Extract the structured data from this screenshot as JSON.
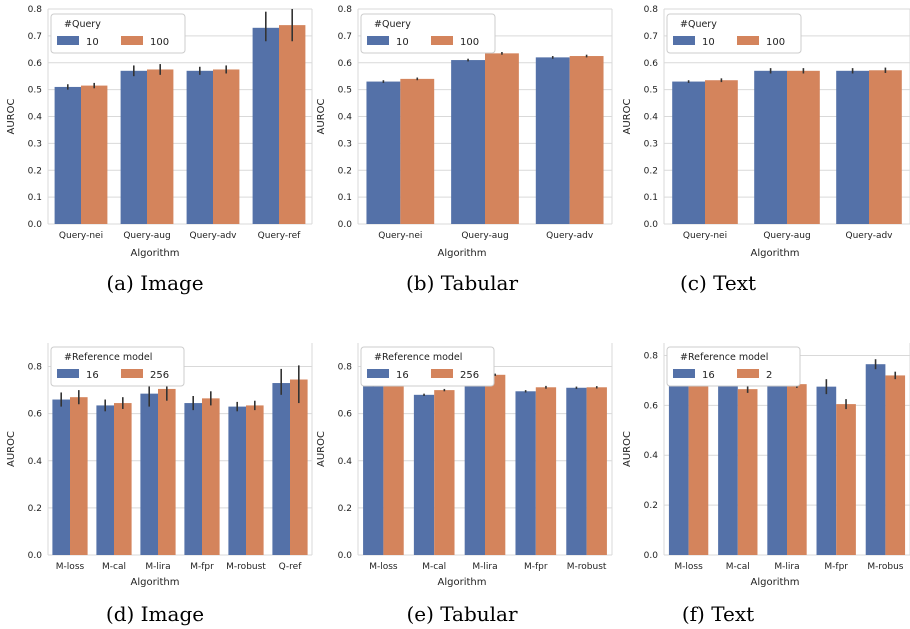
{
  "colors": {
    "series_a": "#5471a8",
    "series_b": "#d4845c",
    "grid": "#d9d9d9",
    "errbar": "#333333"
  },
  "chart_data": [
    {
      "type": "bar",
      "caption": "(a) Image",
      "xlabel": "Algorithm",
      "ylabel": "AUROC",
      "ylim": [
        0,
        0.8
      ],
      "yticks": [
        0.0,
        0.1,
        0.2,
        0.3,
        0.4,
        0.5,
        0.6,
        0.7,
        0.8
      ],
      "grid": "horizontal",
      "legend_title": "#Query",
      "legend_position": "top-left",
      "categories": [
        "Query-nei",
        "Query-aug",
        "Query-adv",
        "Query-ref"
      ],
      "series": [
        {
          "name": "10",
          "values": [
            0.51,
            0.57,
            0.57,
            0.73
          ],
          "err_low": [
            0.5,
            0.55,
            0.555,
            0.68
          ],
          "err_high": [
            0.52,
            0.59,
            0.585,
            0.79
          ]
        },
        {
          "name": "100",
          "values": [
            0.515,
            0.575,
            0.575,
            0.74
          ],
          "err_low": [
            0.505,
            0.555,
            0.56,
            0.68
          ],
          "err_high": [
            0.525,
            0.595,
            0.59,
            0.8
          ]
        }
      ]
    },
    {
      "type": "bar",
      "caption": "(b) Tabular",
      "xlabel": "Algorithm",
      "ylabel": "AUROC",
      "ylim": [
        0,
        0.8
      ],
      "yticks": [
        0.0,
        0.1,
        0.2,
        0.3,
        0.4,
        0.5,
        0.6,
        0.7,
        0.8
      ],
      "grid": "horizontal",
      "legend_title": "#Query",
      "legend_position": "top-left",
      "categories": [
        "Query-nei",
        "Query-aug",
        "Query-adv"
      ],
      "series": [
        {
          "name": "10",
          "values": [
            0.53,
            0.61,
            0.62
          ],
          "err_low": [
            0.525,
            0.605,
            0.615
          ],
          "err_high": [
            0.535,
            0.615,
            0.625
          ]
        },
        {
          "name": "100",
          "values": [
            0.54,
            0.635,
            0.625
          ],
          "err_low": [
            0.535,
            0.63,
            0.62
          ],
          "err_high": [
            0.545,
            0.64,
            0.63
          ]
        }
      ]
    },
    {
      "type": "bar",
      "caption": "(c) Text",
      "xlabel": "Algorithm",
      "ylabel": "AUROC",
      "ylim": [
        0,
        0.8
      ],
      "yticks": [
        0.0,
        0.1,
        0.2,
        0.3,
        0.4,
        0.5,
        0.6,
        0.7,
        0.8
      ],
      "grid": "horizontal",
      "legend_title": "#Query",
      "legend_position": "top-left",
      "categories": [
        "Query-nei",
        "Query-aug",
        "Query-adv"
      ],
      "series": [
        {
          "name": "10",
          "values": [
            0.53,
            0.57,
            0.57
          ],
          "err_low": [
            0.525,
            0.56,
            0.56
          ],
          "err_high": [
            0.535,
            0.58,
            0.58
          ]
        },
        {
          "name": "100",
          "values": [
            0.535,
            0.57,
            0.572
          ],
          "err_low": [
            0.528,
            0.56,
            0.562
          ],
          "err_high": [
            0.542,
            0.58,
            0.582
          ]
        }
      ]
    },
    {
      "type": "bar",
      "caption": "(d) Image",
      "xlabel": "Algorithm",
      "ylabel": "AUROC",
      "ylim": [
        0,
        0.9
      ],
      "yticks": [
        0.0,
        0.2,
        0.4,
        0.6,
        0.8
      ],
      "grid": "horizontal",
      "legend_title": "#Reference model",
      "legend_position": "top-left",
      "categories": [
        "M-loss",
        "M-cal",
        "M-lira",
        "M-fpr",
        "M-robust",
        "Q-ref"
      ],
      "series": [
        {
          "name": "16",
          "values": [
            0.66,
            0.635,
            0.685,
            0.645,
            0.63,
            0.73
          ],
          "err_low": [
            0.63,
            0.61,
            0.63,
            0.615,
            0.61,
            0.68
          ],
          "err_high": [
            0.69,
            0.66,
            0.74,
            0.675,
            0.65,
            0.79
          ]
        },
        {
          "name": "256",
          "values": [
            0.67,
            0.645,
            0.705,
            0.665,
            0.635,
            0.745
          ],
          "err_low": [
            0.64,
            0.62,
            0.655,
            0.635,
            0.615,
            0.645
          ],
          "err_high": [
            0.7,
            0.67,
            0.755,
            0.695,
            0.655,
            0.805
          ]
        }
      ]
    },
    {
      "type": "bar",
      "caption": "(e) Tabular",
      "xlabel": "Algorithm",
      "ylabel": "AUROC",
      "ylim": [
        0,
        0.9
      ],
      "yticks": [
        0.0,
        0.2,
        0.4,
        0.6,
        0.8
      ],
      "grid": "horizontal",
      "legend_title": "#Reference model",
      "legend_position": "top-left",
      "categories": [
        "M-loss",
        "M-cal",
        "M-lira",
        "M-fpr",
        "M-robust"
      ],
      "series": [
        {
          "name": "16",
          "values": [
            0.72,
            0.68,
            0.755,
            0.695,
            0.71
          ],
          "err_low": [
            0.715,
            0.675,
            0.75,
            0.69,
            0.705
          ],
          "err_high": [
            0.725,
            0.685,
            0.76,
            0.7,
            0.715
          ]
        },
        {
          "name": "256",
          "values": [
            0.738,
            0.7,
            0.765,
            0.712,
            0.712
          ],
          "err_low": [
            0.733,
            0.695,
            0.76,
            0.706,
            0.707
          ],
          "err_high": [
            0.743,
            0.705,
            0.77,
            0.718,
            0.717
          ]
        }
      ]
    },
    {
      "type": "bar",
      "caption": "(f) Text",
      "xlabel": "Algorithm",
      "ylabel": "AUROC",
      "ylim": [
        0,
        0.85
      ],
      "yticks": [
        0.0,
        0.2,
        0.4,
        0.6,
        0.8
      ],
      "grid": "horizontal",
      "legend_title": "#Reference model",
      "legend_position": "top-left",
      "categories": [
        "M-loss",
        "M-cal",
        "M-lira",
        "M-fpr",
        "M-robus"
      ],
      "series": [
        {
          "name": "16",
          "values": [
            0.77,
            0.69,
            0.75,
            0.675,
            0.765
          ],
          "err_low": [
            0.755,
            0.68,
            0.73,
            0.645,
            0.745
          ],
          "err_high": [
            0.785,
            0.7,
            0.77,
            0.705,
            0.785
          ]
        },
        {
          "name": "2",
          "values": [
            0.72,
            0.665,
            0.685,
            0.605,
            0.72
          ],
          "err_low": [
            0.705,
            0.65,
            0.67,
            0.585,
            0.705
          ],
          "err_high": [
            0.735,
            0.68,
            0.7,
            0.625,
            0.735
          ]
        }
      ]
    }
  ]
}
